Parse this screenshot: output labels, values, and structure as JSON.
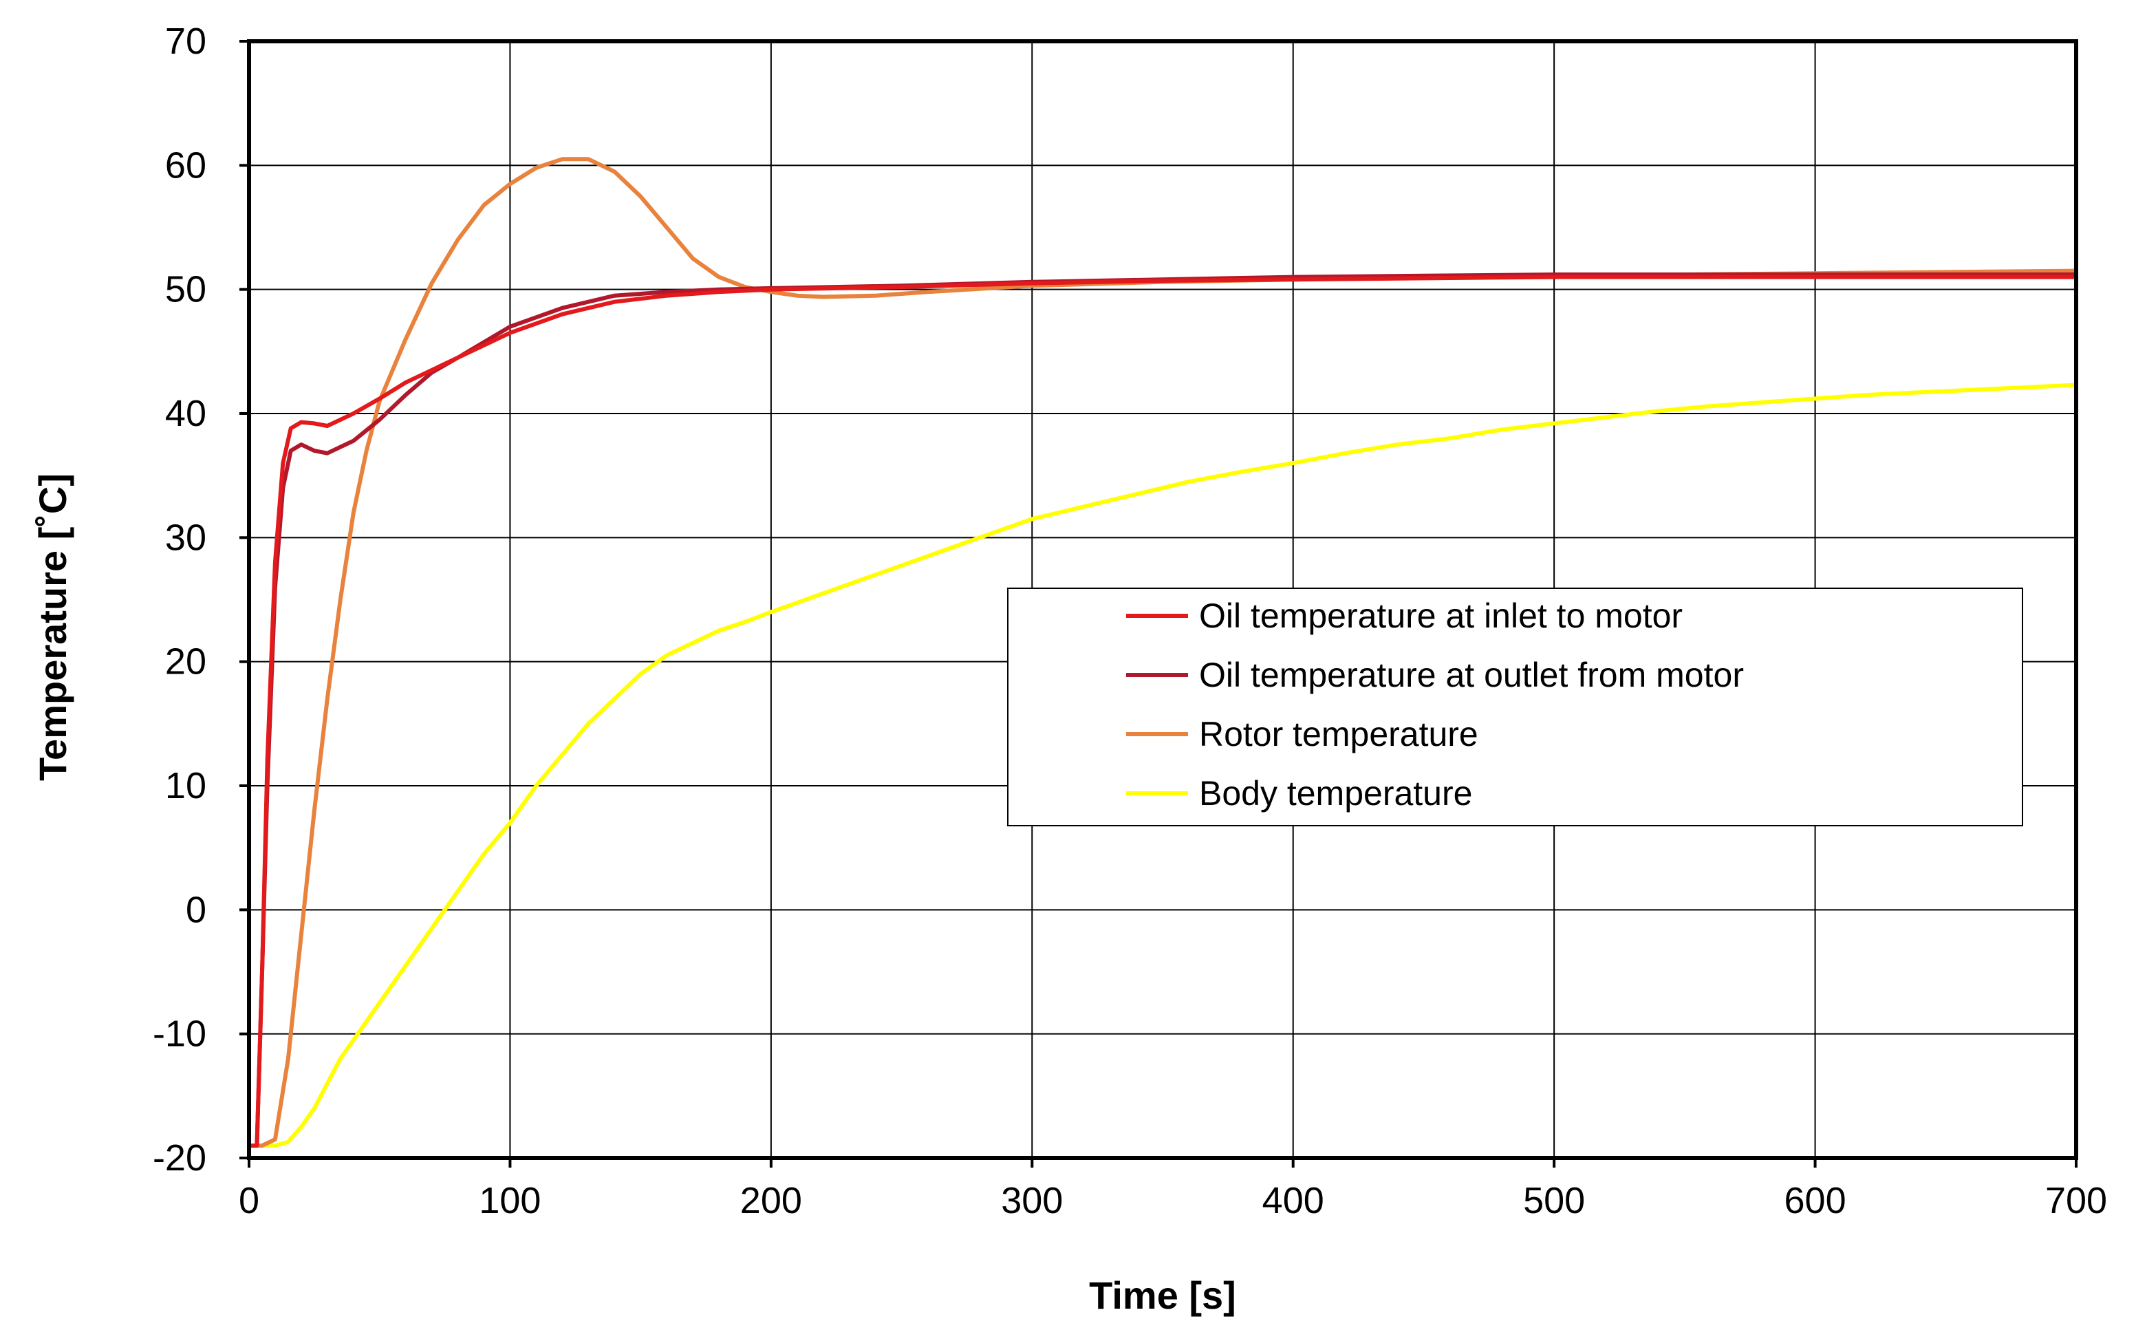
{
  "chart_data": {
    "type": "line",
    "title": "",
    "xlabel": "Time [s]",
    "ylabel": "Temperature  [˚C]",
    "xlim": [
      0,
      700
    ],
    "ylim": [
      -20,
      70
    ],
    "xticks": [
      0,
      100,
      200,
      300,
      400,
      500,
      600,
      700
    ],
    "yticks": [
      -20,
      -10,
      0,
      10,
      20,
      30,
      40,
      50,
      60,
      70
    ],
    "grid": true,
    "legend_position": "center-right",
    "series": [
      {
        "name": "Oil temperature at inlet to motor",
        "color": "#e31a1c",
        "x": [
          0,
          3,
          5,
          7,
          10,
          13,
          16,
          20,
          25,
          30,
          40,
          50,
          60,
          70,
          80,
          100,
          120,
          140,
          160,
          180,
          200,
          250,
          300,
          350,
          400,
          450,
          500,
          550,
          600,
          650,
          700
        ],
        "y": [
          -19,
          -19,
          -5,
          12,
          28,
          36,
          38.8,
          39.3,
          39.2,
          39,
          40,
          41.2,
          42.5,
          43.5,
          44.5,
          46.5,
          48,
          49,
          49.5,
          49.8,
          50,
          50.2,
          50.5,
          50.7,
          50.8,
          50.9,
          51,
          51,
          51,
          51,
          51
        ]
      },
      {
        "name": "Oil temperature at outlet from motor",
        "color": "#b2182b",
        "x": [
          0,
          3,
          5,
          7,
          10,
          13,
          16,
          20,
          25,
          30,
          40,
          50,
          60,
          70,
          80,
          100,
          120,
          140,
          160,
          180,
          200,
          250,
          300,
          350,
          400,
          450,
          500,
          550,
          600,
          650,
          700
        ],
        "y": [
          -19,
          -19,
          -5,
          10,
          26,
          34,
          37,
          37.5,
          37,
          36.8,
          37.8,
          39.5,
          41.5,
          43.3,
          44.5,
          47,
          48.5,
          49.5,
          49.8,
          50,
          50.1,
          50.3,
          50.6,
          50.8,
          51,
          51.1,
          51.2,
          51.2,
          51.2,
          51.2,
          51.2
        ]
      },
      {
        "name": "Rotor temperature",
        "color": "#e8823c",
        "x": [
          0,
          5,
          10,
          15,
          20,
          25,
          30,
          35,
          40,
          45,
          50,
          60,
          70,
          80,
          90,
          100,
          110,
          120,
          130,
          140,
          150,
          160,
          170,
          180,
          190,
          200,
          210,
          220,
          240,
          260,
          300,
          350,
          400,
          450,
          500,
          550,
          600,
          650,
          700
        ],
        "y": [
          -19,
          -19,
          -18.5,
          -12,
          -2,
          8,
          17,
          25,
          32,
          37,
          41,
          46,
          50.5,
          54,
          56.8,
          58.5,
          59.8,
          60.5,
          60.5,
          59.5,
          57.5,
          55,
          52.5,
          51,
          50.2,
          49.8,
          49.5,
          49.4,
          49.5,
          49.8,
          50.3,
          50.6,
          50.8,
          51,
          51.1,
          51.2,
          51.3,
          51.4,
          51.5
        ]
      },
      {
        "name": "Body temperature",
        "color": "#ffff00",
        "x": [
          0,
          10,
          15,
          20,
          25,
          30,
          35,
          40,
          50,
          60,
          70,
          80,
          90,
          100,
          110,
          120,
          130,
          140,
          150,
          160,
          170,
          180,
          190,
          200,
          220,
          240,
          260,
          280,
          300,
          320,
          340,
          360,
          380,
          400,
          420,
          440,
          460,
          480,
          500,
          520,
          540,
          560,
          580,
          600,
          620,
          640,
          660,
          680,
          700
        ],
        "y": [
          -19,
          -19,
          -18.7,
          -17.5,
          -16,
          -14,
          -12,
          -10.5,
          -7.5,
          -4.5,
          -1.5,
          1.5,
          4.5,
          7,
          10,
          12.5,
          15,
          17,
          19,
          20.5,
          21.5,
          22.5,
          23.2,
          24,
          25.5,
          27,
          28.5,
          30,
          31.5,
          32.5,
          33.5,
          34.5,
          35.3,
          36,
          36.8,
          37.5,
          38,
          38.7,
          39.2,
          39.7,
          40.2,
          40.6,
          40.9,
          41.2,
          41.5,
          41.7,
          41.9,
          42.1,
          42.3
        ]
      }
    ]
  }
}
